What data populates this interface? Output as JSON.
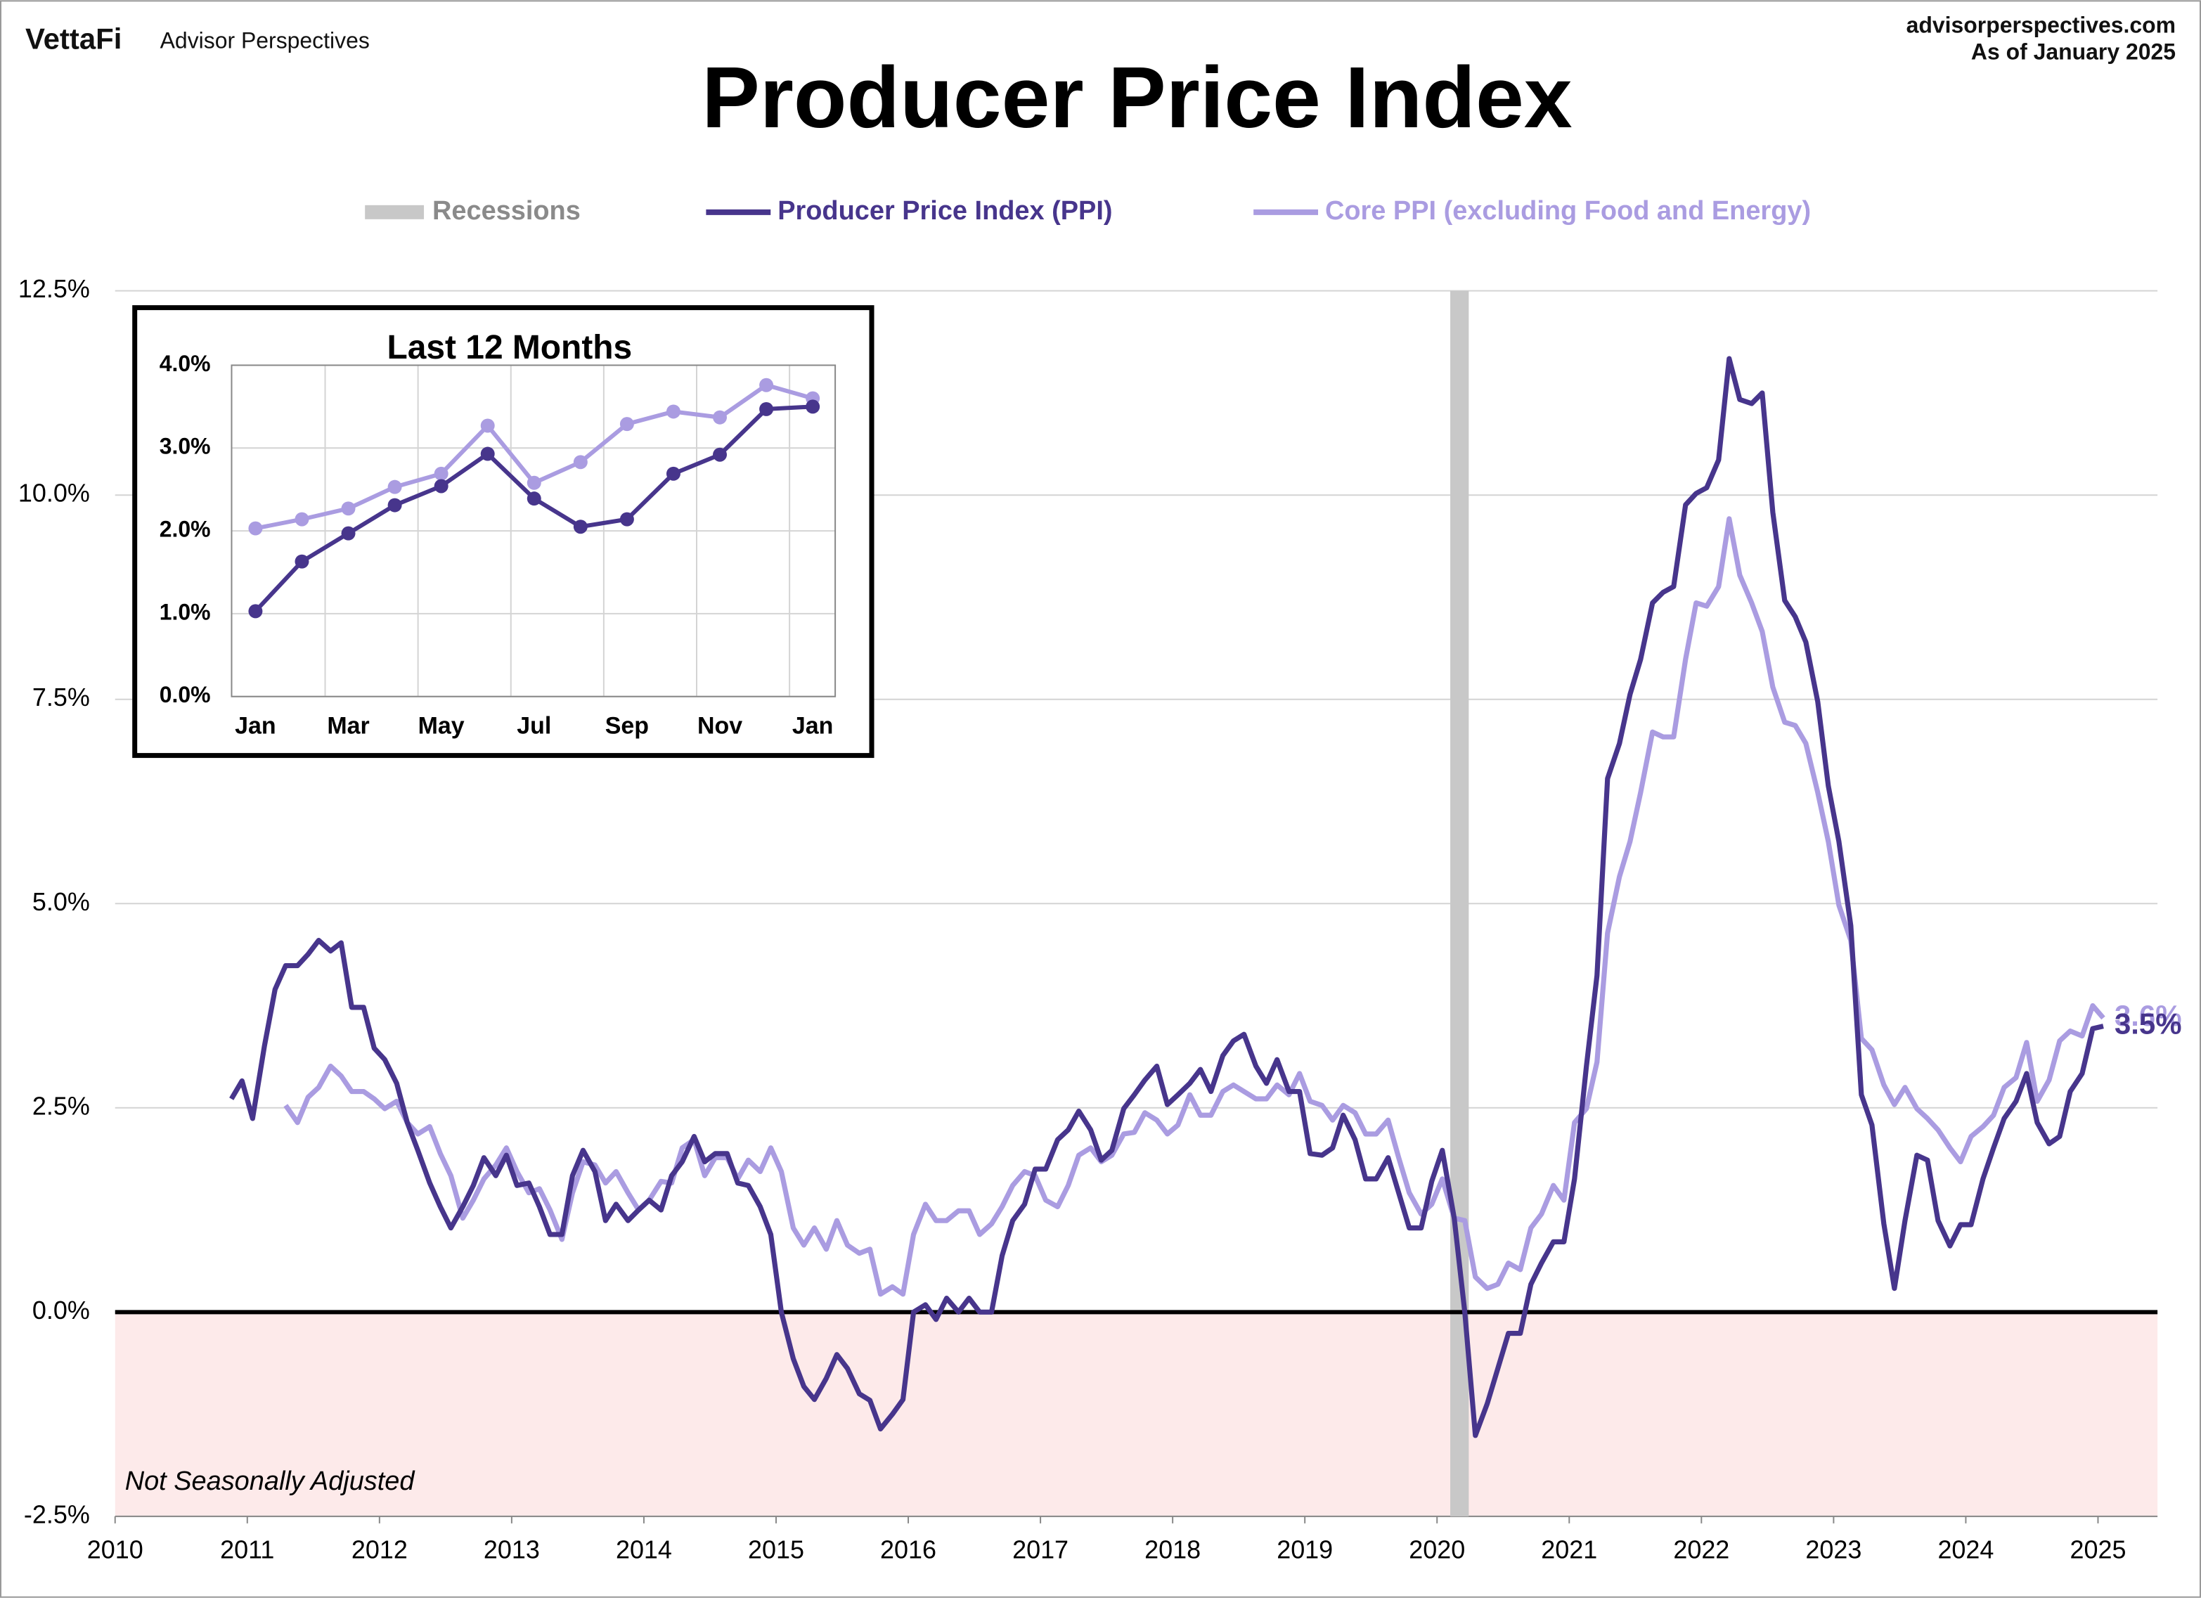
{
  "header": {
    "brand": "VettaFi",
    "publisher": "Advisor Perspectives",
    "site": "advisorperspectives.com",
    "as_of": "As of January 2025"
  },
  "chart_data": [
    {
      "type": "line",
      "title": "Producer Price Index",
      "note": "Not Seasonally Adjusted",
      "legend": {
        "position": "top",
        "recession_label": "Recessions"
      },
      "recessions": [
        [
          2020.1,
          2020.24
        ]
      ],
      "recession_color": "#c8c8c8",
      "negative_shading": "#fdeaea",
      "xlim": [
        2010,
        2025.45
      ],
      "xticks": [
        2010,
        2011,
        2012,
        2013,
        2014,
        2015,
        2016,
        2017,
        2018,
        2019,
        2020,
        2021,
        2022,
        2023,
        2024,
        2025
      ],
      "ylim": [
        -2.5,
        12.5
      ],
      "yticks": [
        {
          "value": -2.5,
          "label": "-2.5%"
        },
        {
          "value": 0,
          "label": "0.0%"
        },
        {
          "value": 2.5,
          "label": "2.5%"
        },
        {
          "value": 5,
          "label": "5.0%"
        },
        {
          "value": 7.5,
          "label": "7.5%"
        },
        {
          "value": 10,
          "label": "10.0%"
        },
        {
          "value": 12.5,
          "label": "12.5%"
        }
      ],
      "grid": true,
      "x": [
        2010.88,
        2010.96,
        2011.04,
        2011.13,
        2011.21,
        2011.29,
        2011.38,
        2011.46,
        2011.54,
        2011.63,
        2011.71,
        2011.79,
        2011.88,
        2011.96,
        2012.04,
        2012.13,
        2012.21,
        2012.29,
        2012.38,
        2012.46,
        2012.54,
        2012.63,
        2012.71,
        2012.79,
        2012.88,
        2012.96,
        2013.04,
        2013.13,
        2013.21,
        2013.29,
        2013.38,
        2013.46,
        2013.54,
        2013.63,
        2013.71,
        2013.79,
        2013.88,
        2013.96,
        2014.04,
        2014.13,
        2014.21,
        2014.29,
        2014.38,
        2014.46,
        2014.54,
        2014.63,
        2014.71,
        2014.79,
        2014.88,
        2014.96,
        2015.04,
        2015.13,
        2015.21,
        2015.29,
        2015.38,
        2015.46,
        2015.54,
        2015.63,
        2015.71,
        2015.79,
        2015.88,
        2015.96,
        2016.04,
        2016.13,
        2016.21,
        2016.29,
        2016.38,
        2016.46,
        2016.54,
        2016.63,
        2016.71,
        2016.79,
        2016.88,
        2016.96,
        2017.04,
        2017.13,
        2017.21,
        2017.29,
        2017.38,
        2017.46,
        2017.54,
        2017.63,
        2017.71,
        2017.79,
        2017.88,
        2017.96,
        2018.04,
        2018.13,
        2018.21,
        2018.29,
        2018.38,
        2018.46,
        2018.54,
        2018.63,
        2018.71,
        2018.79,
        2018.88,
        2018.96,
        2019.04,
        2019.13,
        2019.21,
        2019.29,
        2019.38,
        2019.46,
        2019.54,
        2019.63,
        2019.71,
        2019.79,
        2019.88,
        2019.96,
        2020.04,
        2020.13,
        2020.21,
        2020.29,
        2020.38,
        2020.46,
        2020.54,
        2020.63,
        2020.71,
        2020.79,
        2020.88,
        2020.96,
        2021.04,
        2021.13,
        2021.21,
        2021.29,
        2021.38,
        2021.46,
        2021.54,
        2021.63,
        2021.71,
        2021.79,
        2021.88,
        2021.96,
        2022.04,
        2022.13,
        2022.21,
        2022.29,
        2022.38,
        2022.46,
        2022.54,
        2022.63,
        2022.71,
        2022.79,
        2022.88,
        2022.96,
        2023.04,
        2023.13,
        2023.21,
        2023.29,
        2023.38,
        2023.46,
        2023.54,
        2023.63,
        2023.71,
        2023.79,
        2023.88,
        2023.96,
        2024.04,
        2024.13,
        2024.21,
        2024.29,
        2024.38,
        2024.46,
        2024.54,
        2024.63,
        2024.71,
        2024.79,
        2024.88,
        2024.96,
        2025.04
      ],
      "series": [
        {
          "name": "Producer Price Index (PPI)",
          "color": "#47358c",
          "end_label": "3.5%",
          "values": [
            2.61,
            2.83,
            2.37,
            3.26,
            3.95,
            4.24,
            4.24,
            4.38,
            4.55,
            4.42,
            4.52,
            3.73,
            3.73,
            3.23,
            3.09,
            2.8,
            2.32,
            1.98,
            1.58,
            1.29,
            1.03,
            1.29,
            1.55,
            1.89,
            1.67,
            1.92,
            1.55,
            1.58,
            1.29,
            0.95,
            0.95,
            1.67,
            1.98,
            1.72,
            1.12,
            1.32,
            1.12,
            1.25,
            1.37,
            1.25,
            1.67,
            1.84,
            2.15,
            1.84,
            1.94,
            1.94,
            1.58,
            1.55,
            1.29,
            0.95,
            0.0,
            -0.57,
            -0.91,
            -1.07,
            -0.81,
            -0.52,
            -0.69,
            -1.0,
            -1.08,
            -1.43,
            -1.25,
            -1.07,
            0.0,
            0.09,
            -0.09,
            0.17,
            0.0,
            0.17,
            0.0,
            0.0,
            0.69,
            1.12,
            1.32,
            1.75,
            1.75,
            2.11,
            2.23,
            2.46,
            2.23,
            1.86,
            1.98,
            2.49,
            2.66,
            2.84,
            3.01,
            2.54,
            2.66,
            2.8,
            2.97,
            2.7,
            3.14,
            3.32,
            3.4,
            3.01,
            2.8,
            3.09,
            2.7,
            2.7,
            1.94,
            1.92,
            2.01,
            2.41,
            2.11,
            1.63,
            1.63,
            1.89,
            1.46,
            1.03,
            1.03,
            1.6,
            1.98,
            1.15,
            0.0,
            -1.51,
            -1.12,
            -0.69,
            -0.26,
            -0.26,
            0.34,
            0.6,
            0.86,
            0.86,
            1.63,
            3.01,
            4.12,
            6.53,
            6.96,
            7.56,
            7.99,
            8.68,
            8.81,
            8.88,
            9.88,
            10.02,
            10.09,
            10.43,
            11.67,
            11.17,
            11.12,
            11.25,
            9.79,
            8.71,
            8.51,
            8.2,
            7.47,
            6.44,
            5.76,
            4.73,
            2.66,
            2.29,
            1.08,
            0.29,
            1.12,
            1.92,
            1.86,
            1.12,
            0.81,
            1.07,
            1.07,
            1.63,
            2.01,
            2.37,
            2.58,
            2.92,
            2.32,
            2.06,
            2.15,
            2.7,
            2.92,
            3.47,
            3.5
          ]
        },
        {
          "name": "Core PPI (excluding Food and Energy)",
          "color": "#aa9ce1",
          "end_label": "3.6%",
          "values": [
            null,
            null,
            null,
            null,
            null,
            2.53,
            2.32,
            2.63,
            2.75,
            3.01,
            2.89,
            2.7,
            2.7,
            2.61,
            2.49,
            2.58,
            2.32,
            2.18,
            2.27,
            1.94,
            1.67,
            1.15,
            1.37,
            1.63,
            1.8,
            2.01,
            1.72,
            1.46,
            1.51,
            1.25,
            0.89,
            1.46,
            1.84,
            1.8,
            1.58,
            1.72,
            1.46,
            1.25,
            1.37,
            1.6,
            1.58,
            2.01,
            2.11,
            1.67,
            1.89,
            1.89,
            1.63,
            1.86,
            1.72,
            2.01,
            1.72,
            1.03,
            0.82,
            1.03,
            0.77,
            1.12,
            0.82,
            0.72,
            0.77,
            0.22,
            0.31,
            0.22,
            0.95,
            1.32,
            1.12,
            1.12,
            1.24,
            1.24,
            0.95,
            1.08,
            1.29,
            1.55,
            1.72,
            1.67,
            1.37,
            1.29,
            1.55,
            1.92,
            2.01,
            1.84,
            1.92,
            2.18,
            2.2,
            2.44,
            2.35,
            2.18,
            2.29,
            2.66,
            2.41,
            2.41,
            2.7,
            2.78,
            2.7,
            2.61,
            2.61,
            2.78,
            2.66,
            2.92,
            2.58,
            2.53,
            2.35,
            2.53,
            2.44,
            2.18,
            2.18,
            2.35,
            1.89,
            1.46,
            1.2,
            1.32,
            1.63,
            1.15,
            1.12,
            0.43,
            0.29,
            0.34,
            0.6,
            0.52,
            1.03,
            1.2,
            1.55,
            1.37,
            2.32,
            2.49,
            3.06,
            4.64,
            5.33,
            5.76,
            6.36,
            7.1,
            7.04,
            7.04,
            7.99,
            8.68,
            8.64,
            8.88,
            9.71,
            9.02,
            8.68,
            8.33,
            7.65,
            7.22,
            7.18,
            6.96,
            6.36,
            5.76,
            4.98,
            4.55,
            3.35,
            3.21,
            2.78,
            2.54,
            2.75,
            2.49,
            2.37,
            2.23,
            2.01,
            1.84,
            2.15,
            2.27,
            2.41,
            2.75,
            2.87,
            3.3,
            2.58,
            2.84,
            3.32,
            3.44,
            3.38,
            3.75,
            3.6
          ]
        }
      ]
    },
    {
      "type": "line",
      "title": "Last 12 Months",
      "categories": [
        "Jan",
        null,
        "Mar",
        null,
        "May",
        null,
        "Jul",
        null,
        "Sep",
        null,
        "Nov",
        null,
        "Jan"
      ],
      "ylim": [
        0,
        4
      ],
      "yticks": [
        {
          "value": 0,
          "label": "0.0%"
        },
        {
          "value": 1,
          "label": "1.0%"
        },
        {
          "value": 2,
          "label": "2.0%"
        },
        {
          "value": 3,
          "label": "3.0%"
        },
        {
          "value": 4,
          "label": "4.0%"
        }
      ],
      "grid": true,
      "series": [
        {
          "name": "Producer Price Index (PPI)",
          "color": "#47358c",
          "values": [
            1.03,
            1.63,
            1.97,
            2.31,
            2.54,
            2.93,
            2.39,
            2.05,
            2.14,
            2.69,
            2.92,
            3.47,
            3.5
          ]
        },
        {
          "name": "Core PPI (excluding Food and Energy)",
          "color": "#aa9ce1",
          "values": [
            2.03,
            2.14,
            2.27,
            2.53,
            2.69,
            3.27,
            2.58,
            2.83,
            3.29,
            3.44,
            3.37,
            3.76,
            3.6
          ]
        }
      ]
    }
  ]
}
